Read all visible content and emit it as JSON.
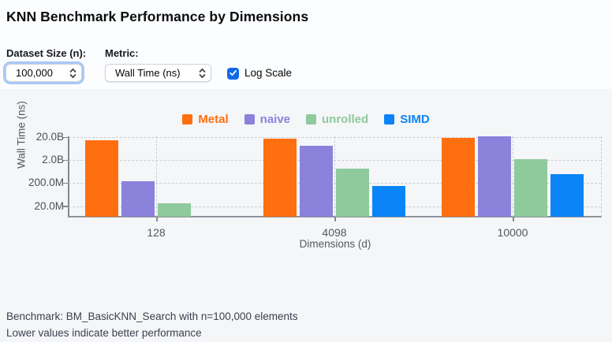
{
  "title": "KNN Benchmark Performance by Dimensions",
  "controls": {
    "dataset_size_label": "Dataset Size (n):",
    "dataset_size_value": "100,000",
    "metric_label": "Metric:",
    "metric_value": "Wall Time (ns)",
    "log_scale_label": "Log Scale",
    "log_scale_checked": true
  },
  "chart_data": {
    "type": "bar",
    "title": "",
    "categories": [
      "128",
      "4098",
      "10000"
    ],
    "series": [
      {
        "name": "Metal",
        "color": "#ff6f0f",
        "values": [
          15000000000,
          17000000000,
          18500000000
        ]
      },
      {
        "name": "naive",
        "color": "#8a82db",
        "values": [
          245000000,
          8400000000,
          21500000000
        ]
      },
      {
        "name": "unrolled",
        "color": "#8fca9c",
        "values": [
          26000000,
          860000000,
          2200000000
        ]
      },
      {
        "name": "SIMD",
        "color": "#0b84f7",
        "values": [
          null,
          150000000,
          500000000
        ]
      }
    ],
    "xlabel": "Dimensions (d)",
    "ylabel": "Wall Time (ns)",
    "yscale": "log",
    "ytick_labels": [
      "20.0B",
      "2.0B",
      "200.0M",
      "20.0M"
    ],
    "ytick_values": [
      20000000000,
      2000000000,
      200000000,
      20000000
    ],
    "ymin": 7000000,
    "grid": true,
    "legend_position": "top-center"
  },
  "footer": {
    "line1": "Benchmark: BM_BasicKNN_Search with n=100,000 elements",
    "line2": "Lower values indicate better performance"
  },
  "colors": {
    "accent_blue": "#0b84f7",
    "checkbox_blue": "#1269e8",
    "focus_ring": "#a9c9f6",
    "grid": "#c9cdd4",
    "axis": "#84878d"
  }
}
